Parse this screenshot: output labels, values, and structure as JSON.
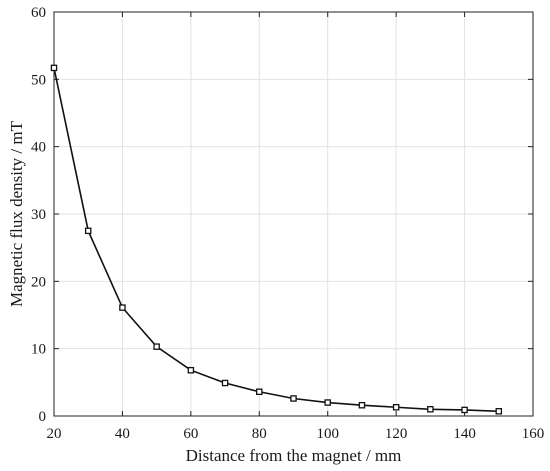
{
  "chart_data": {
    "type": "line",
    "title": "",
    "xlabel": "Distance from the magnet / mm",
    "ylabel": "Magnetic flux density / mT",
    "xlim": [
      20,
      160
    ],
    "ylim": [
      0,
      60
    ],
    "xticks": [
      20,
      40,
      60,
      80,
      100,
      120,
      140,
      160
    ],
    "yticks": [
      0,
      10,
      20,
      30,
      40,
      50,
      60
    ],
    "grid": true,
    "series": [
      {
        "x": [
          20,
          30,
          40,
          50,
          60,
          70,
          80,
          90,
          100,
          110,
          120,
          130,
          140,
          150
        ],
        "y": [
          51.7,
          27.5,
          16.1,
          10.3,
          6.8,
          4.9,
          3.6,
          2.6,
          2.0,
          1.6,
          1.3,
          1.0,
          0.9,
          0.7
        ],
        "color": "#111111",
        "marker": "square"
      }
    ]
  }
}
